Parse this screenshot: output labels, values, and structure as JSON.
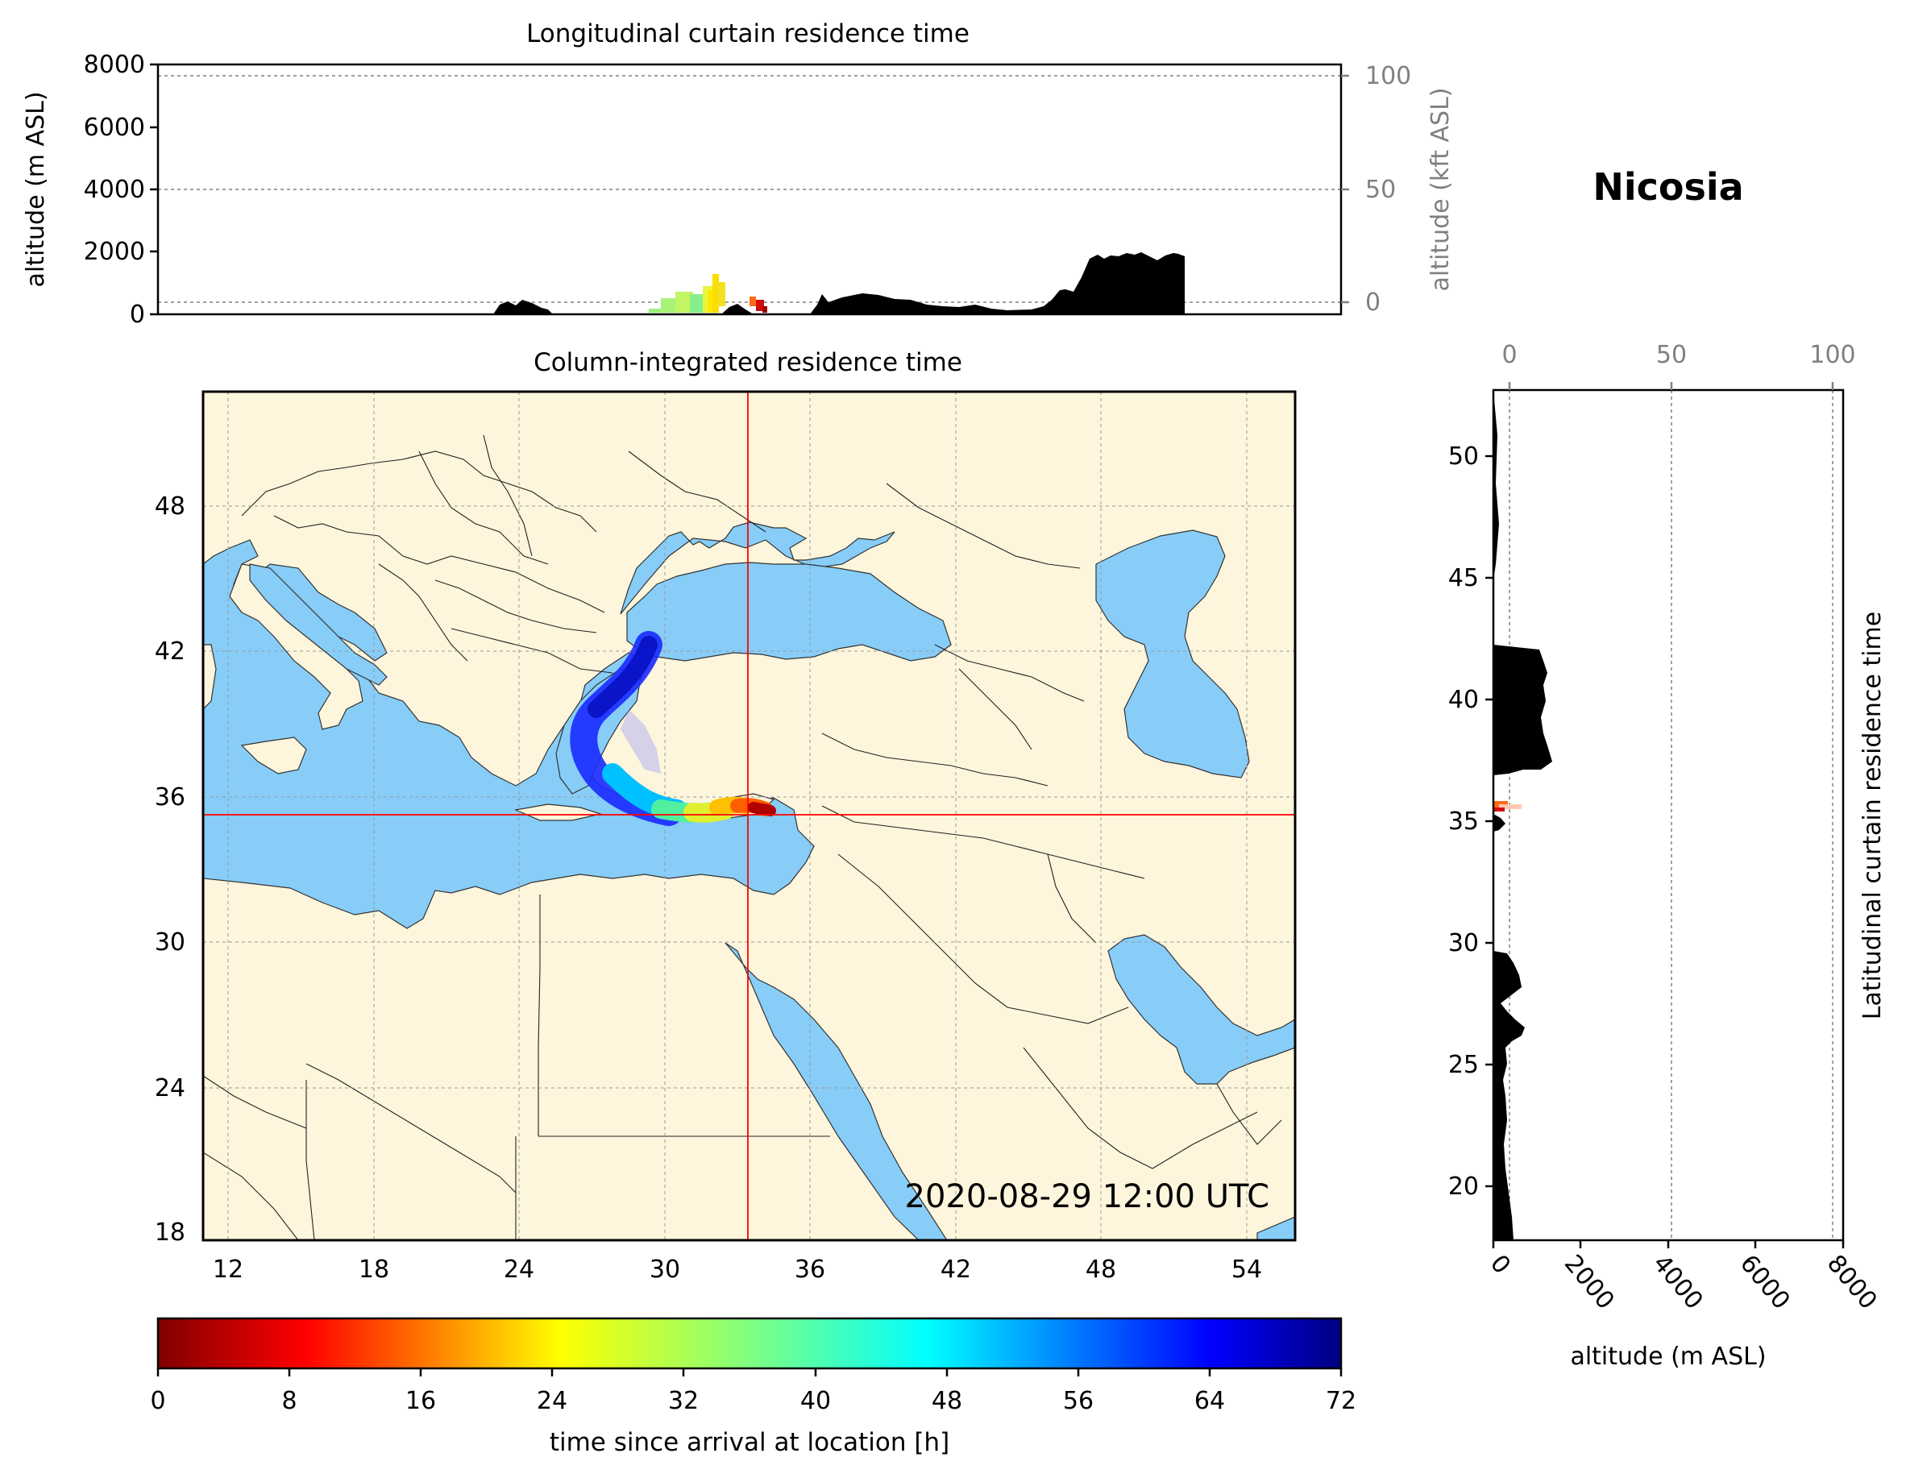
{
  "location": "Nicosia",
  "timestamp": "2020-08-29 12:00 UTC",
  "colors": {
    "land": "#fdf5dc",
    "water": "#87cdf8",
    "crosshair": "#ff0000",
    "terrain": "#000000",
    "borders": "#000000",
    "secondary_axis": "#808080"
  },
  "longitudinal_panel": {
    "title": "Longitudinal curtain residence time",
    "ylabel_left": "altitude (m ASL)",
    "ylabel_right": "altitude (kft ASL)",
    "yticks_left": [
      "0",
      "2000",
      "4000",
      "6000",
      "8000"
    ],
    "yticks_right": [
      "0",
      "50",
      "100"
    ]
  },
  "map_panel": {
    "title": "Column-integrated residence time",
    "xticks": [
      "12",
      "18",
      "24",
      "30",
      "36",
      "42",
      "48",
      "54"
    ],
    "yticks": [
      "18",
      "24",
      "30",
      "36",
      "42",
      "48"
    ],
    "crosshair": {
      "lon": 33.3,
      "lat": 35.2
    }
  },
  "latitudinal_panel": {
    "ylabel": "Latitudinal curtain residence time",
    "xlabel": "altitude (m ASL)",
    "xticks_bottom": [
      "0",
      "2000",
      "4000",
      "6000",
      "8000"
    ],
    "xticks_top": [
      "0",
      "50",
      "100"
    ],
    "yticks": [
      "20",
      "25",
      "30",
      "35",
      "40",
      "45",
      "50"
    ]
  },
  "colorbar": {
    "label": "time since arrival at location [h]",
    "ticks": [
      "0",
      "8",
      "16",
      "24",
      "32",
      "40",
      "48",
      "56",
      "64",
      "72"
    ],
    "colormap": "jet_reversed",
    "range": [
      0,
      72
    ]
  }
}
